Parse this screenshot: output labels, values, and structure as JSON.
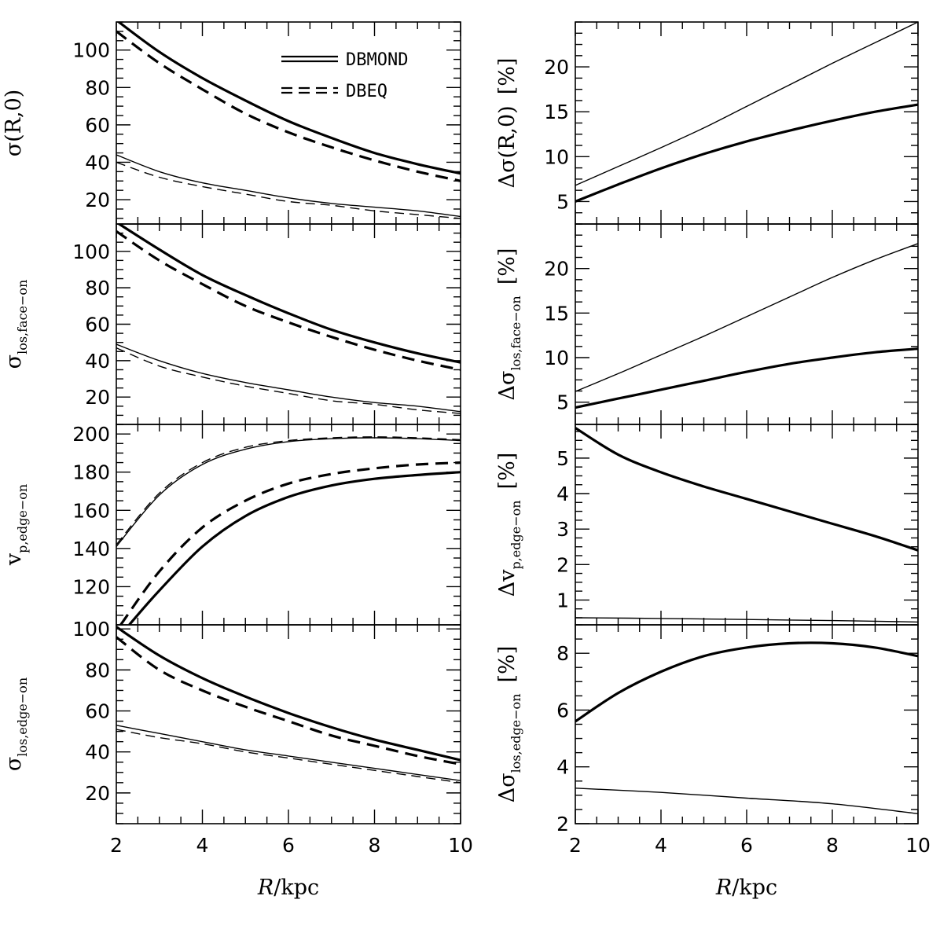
{
  "chart_data": [
    {
      "id": "sigma-R0",
      "type": "line",
      "xlim": [
        2,
        10
      ],
      "ylim": [
        7,
        115
      ],
      "yticks_major": [
        20,
        40,
        60,
        80,
        100
      ],
      "ytick_labels": [
        "20",
        "40",
        "60",
        "80",
        "100"
      ],
      "xticks_major": [
        2,
        4,
        6,
        8,
        10
      ],
      "xtick_labels": [
        "2",
        "4",
        "6",
        "8",
        "10"
      ],
      "ylabel": {
        "main": "σ(R,0)",
        "sub": ""
      },
      "legend": {
        "placement": "top-right",
        "entries": [
          {
            "label": "DBMOND",
            "style": "double-solid"
          },
          {
            "label": "DBEQ",
            "style": "double-dashed"
          }
        ]
      },
      "series": [
        {
          "style": "thick-solid",
          "x": [
            2,
            3,
            4,
            5,
            6,
            7,
            8,
            9,
            10
          ],
          "y": [
            116,
            99,
            85,
            73,
            62,
            53,
            45,
            39,
            34
          ]
        },
        {
          "style": "thick-dashed",
          "x": [
            2,
            3,
            4,
            5,
            6,
            7,
            8,
            9,
            10
          ],
          "y": [
            110,
            93,
            79,
            66,
            56,
            48,
            41,
            35,
            30
          ]
        },
        {
          "style": "thin-solid",
          "x": [
            2,
            3,
            4,
            5,
            6,
            7,
            8,
            9,
            10
          ],
          "y": [
            44,
            35,
            29,
            25,
            21,
            18,
            16,
            14,
            11
          ]
        },
        {
          "style": "thin-dashed",
          "x": [
            2,
            3,
            4,
            5,
            6,
            7,
            8,
            9,
            10
          ],
          "y": [
            40,
            32,
            27,
            23,
            19,
            17,
            14,
            12,
            10
          ]
        }
      ]
    },
    {
      "id": "dsigma-R0",
      "type": "line",
      "xlim": [
        2,
        10
      ],
      "ylim": [
        2.5,
        25
      ],
      "yticks_major": [
        5,
        10,
        15,
        20
      ],
      "ytick_labels": [
        "5",
        "10",
        "15",
        "20"
      ],
      "xticks_major": [
        2,
        4,
        6,
        8,
        10
      ],
      "xtick_labels": [
        "2",
        "4",
        "6",
        "8",
        "10"
      ],
      "ylabel": {
        "main": "Δσ(R,0)",
        "sub": "",
        "unit": "[%]"
      },
      "series": [
        {
          "style": "thin-solid",
          "x": [
            2,
            3,
            4,
            5,
            6,
            7,
            8,
            9,
            10
          ],
          "y": [
            6.8,
            8.9,
            11.0,
            13.2,
            15.6,
            18.0,
            20.4,
            22.7,
            25.0
          ]
        },
        {
          "style": "thick-solid",
          "x": [
            2,
            3,
            4,
            5,
            6,
            7,
            8,
            9,
            10
          ],
          "y": [
            5.0,
            6.9,
            8.7,
            10.3,
            11.7,
            12.9,
            14.0,
            15.0,
            15.8
          ]
        }
      ]
    },
    {
      "id": "sigma-los-face-on",
      "type": "line",
      "xlim": [
        2,
        10
      ],
      "ylim": [
        5,
        115
      ],
      "yticks_major": [
        20,
        40,
        60,
        80,
        100
      ],
      "ytick_labels": [
        "20",
        "40",
        "60",
        "80",
        "100"
      ],
      "xticks_major": [
        2,
        4,
        6,
        8,
        10
      ],
      "xtick_labels": [
        "2",
        "4",
        "6",
        "8",
        "10"
      ],
      "ylabel": {
        "main": "σ",
        "sub": "los,face−on"
      },
      "series": [
        {
          "style": "thick-solid",
          "x": [
            2,
            3,
            4,
            5,
            6,
            7,
            8,
            9,
            10
          ],
          "y": [
            116,
            101,
            87,
            76,
            66,
            57,
            50,
            44,
            39
          ]
        },
        {
          "style": "thick-dashed",
          "x": [
            2,
            3,
            4,
            5,
            6,
            7,
            8,
            9,
            10
          ],
          "y": [
            111,
            95,
            82,
            70,
            61,
            53,
            46,
            40,
            35
          ]
        },
        {
          "style": "thin-solid",
          "x": [
            2,
            3,
            4,
            5,
            6,
            7,
            8,
            9,
            10
          ],
          "y": [
            49,
            40,
            33,
            28,
            24,
            20,
            17,
            15,
            12
          ]
        },
        {
          "style": "thin-dashed",
          "x": [
            2,
            3,
            4,
            5,
            6,
            7,
            8,
            9,
            10
          ],
          "y": [
            47,
            37,
            31,
            26,
            22,
            18,
            16,
            13,
            11
          ]
        }
      ]
    },
    {
      "id": "dsigma-los-face-on",
      "type": "line",
      "xlim": [
        2,
        10
      ],
      "ylim": [
        2.5,
        25
      ],
      "yticks_major": [
        5,
        10,
        15,
        20
      ],
      "ytick_labels": [
        "5",
        "10",
        "15",
        "20"
      ],
      "xticks_major": [
        2,
        4,
        6,
        8,
        10
      ],
      "xtick_labels": [
        "2",
        "4",
        "6",
        "8",
        "10"
      ],
      "ylabel": {
        "main": "Δσ",
        "sub": "los,face−on",
        "unit": "[%]"
      },
      "series": [
        {
          "style": "thin-solid",
          "x": [
            2,
            3,
            4,
            5,
            6,
            7,
            8,
            9,
            10
          ],
          "y": [
            6.2,
            8.2,
            10.3,
            12.4,
            14.6,
            16.8,
            19.0,
            21.0,
            22.8
          ]
        },
        {
          "style": "thick-solid",
          "x": [
            2,
            3,
            4,
            5,
            6,
            7,
            8,
            9,
            10
          ],
          "y": [
            4.4,
            5.4,
            6.4,
            7.4,
            8.4,
            9.3,
            10.0,
            10.6,
            11.0
          ]
        }
      ]
    },
    {
      "id": "vp-edge-on",
      "type": "line",
      "xlim": [
        2,
        10
      ],
      "ylim": [
        100,
        205
      ],
      "yticks_major": [
        120,
        140,
        160,
        180,
        200
      ],
      "ytick_labels": [
        "120",
        "140",
        "160",
        "180",
        "200"
      ],
      "xticks_major": [
        2,
        4,
        6,
        8,
        10
      ],
      "xtick_labels": [
        "2",
        "4",
        "6",
        "8",
        "10"
      ],
      "ylabel": {
        "main": "v",
        "sub": "p,edge−on"
      },
      "series": [
        {
          "style": "thin-solid",
          "x": [
            2,
            3,
            4,
            5,
            6,
            7,
            8,
            9,
            10
          ],
          "y": [
            141,
            168,
            184,
            192,
            196,
            197.5,
            198,
            197.5,
            196.5
          ]
        },
        {
          "style": "thin-dashed",
          "x": [
            2,
            3,
            4,
            5,
            6,
            7,
            8,
            9,
            10
          ],
          "y": [
            142,
            169,
            185,
            193,
            196.5,
            198,
            198.5,
            198,
            197
          ]
        },
        {
          "style": "thick-dashed",
          "x": [
            2.1,
            3,
            4,
            5,
            6,
            7,
            8,
            9,
            10
          ],
          "y": [
            100,
            128,
            151,
            165,
            174,
            179,
            182,
            184,
            185
          ]
        },
        {
          "style": "thick-solid",
          "x": [
            2.3,
            3,
            4,
            5,
            6,
            7,
            8,
            9,
            10
          ],
          "y": [
            100,
            118,
            141,
            157,
            167,
            173,
            176.5,
            178.5,
            180
          ]
        }
      ]
    },
    {
      "id": "dvp-edge-on",
      "type": "line",
      "xlim": [
        2,
        10
      ],
      "ylim": [
        0.3,
        5.95
      ],
      "yticks_major": [
        1,
        2,
        3,
        4,
        5
      ],
      "ytick_labels": [
        "1",
        "2",
        "3",
        "4",
        "5"
      ],
      "xticks_major": [
        2,
        4,
        6,
        8,
        10
      ],
      "xtick_labels": [
        "2",
        "4",
        "6",
        "8",
        "10"
      ],
      "ylabel": {
        "main": "Δv",
        "sub": "p,edge−on",
        "unit": "[%]"
      },
      "series": [
        {
          "style": "thick-solid",
          "x": [
            2,
            3,
            4,
            5,
            6,
            7,
            8,
            9,
            10
          ],
          "y": [
            5.85,
            5.1,
            4.6,
            4.2,
            3.85,
            3.5,
            3.15,
            2.8,
            2.4
          ]
        },
        {
          "style": "thin-solid",
          "x": [
            2,
            4,
            6,
            8,
            10
          ],
          "y": [
            0.5,
            0.48,
            0.45,
            0.42,
            0.38
          ]
        }
      ]
    },
    {
      "id": "sigma-los-edge-on",
      "type": "line",
      "xlim": [
        2,
        10
      ],
      "ylim": [
        5,
        102
      ],
      "yticks_major": [
        20,
        40,
        60,
        80,
        100
      ],
      "ytick_labels": [
        "20",
        "40",
        "60",
        "80",
        "100"
      ],
      "xticks_major": [
        2,
        4,
        6,
        8,
        10
      ],
      "xtick_labels": [
        "2",
        "4",
        "6",
        "8",
        "10"
      ],
      "xlabel": {
        "main": "R/kpc"
      },
      "ylabel": {
        "main": "σ",
        "sub": "los,edge−on"
      },
      "series": [
        {
          "style": "thick-solid",
          "x": [
            2,
            3,
            4,
            5,
            6,
            7,
            8,
            9,
            10
          ],
          "y": [
            101,
            87,
            76,
            67,
            59,
            52,
            46,
            41,
            36
          ]
        },
        {
          "style": "thick-dashed",
          "x": [
            2,
            3,
            4,
            5,
            6,
            7,
            8,
            9,
            10
          ],
          "y": [
            96,
            80,
            70,
            62,
            55,
            48,
            43,
            38,
            34
          ]
        },
        {
          "style": "thin-solid",
          "x": [
            2,
            3,
            4,
            5,
            6,
            7,
            8,
            9,
            10
          ],
          "y": [
            53,
            49,
            45,
            41,
            38,
            35,
            32,
            29,
            26
          ]
        },
        {
          "style": "thin-dashed",
          "x": [
            2,
            3,
            4,
            5,
            6,
            7,
            8,
            9,
            10
          ],
          "y": [
            51,
            47,
            44,
            40,
            37,
            34,
            31,
            28,
            25
          ]
        }
      ]
    },
    {
      "id": "dsigma-los-edge-on",
      "type": "line",
      "xlim": [
        2,
        10
      ],
      "ylim": [
        2,
        9
      ],
      "yticks_major": [
        2,
        4,
        6,
        8
      ],
      "ytick_labels": [
        "2",
        "4",
        "6",
        "8"
      ],
      "xticks_major": [
        2,
        4,
        6,
        8,
        10
      ],
      "xtick_labels": [
        "2",
        "4",
        "6",
        "8",
        "10"
      ],
      "xlabel": {
        "main": "R/kpc"
      },
      "ylabel": {
        "main": "Δσ",
        "sub": "los,edge−on",
        "unit": "[%]"
      },
      "series": [
        {
          "style": "thick-solid",
          "x": [
            2,
            3,
            4,
            5,
            6,
            7,
            8,
            9,
            10
          ],
          "y": [
            5.6,
            6.6,
            7.35,
            7.9,
            8.2,
            8.35,
            8.35,
            8.2,
            7.9
          ]
        },
        {
          "style": "thin-solid",
          "x": [
            2,
            4,
            6,
            8,
            10
          ],
          "y": [
            3.25,
            3.1,
            2.9,
            2.7,
            2.35
          ]
        }
      ]
    }
  ]
}
